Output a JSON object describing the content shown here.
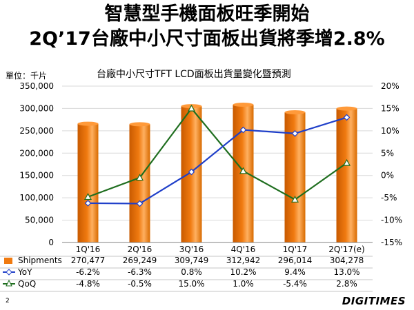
{
  "header": {
    "title_line1": "智慧型手機面板旺季開始",
    "title_line2": "2Q’17台廠中小尺寸面板出貨將季增2.8%"
  },
  "footer": {
    "page_number": "2",
    "logo_text": "DIGITIMES"
  },
  "colors": {
    "bar": "#f07a10",
    "yoy": "#1f3fc9",
    "qoq": "#1f6e1f",
    "grid": "#d9d9d9"
  },
  "chart_data": {
    "type": "bar",
    "title": "台廠中小尺寸TFT LCD面板出貨量變化暨預測",
    "unit_label": "單位：千片",
    "categories": [
      "1Q'16",
      "2Q'16",
      "3Q'16",
      "4Q'16",
      "1Q'17",
      "2Q'17(e)"
    ],
    "series": [
      {
        "name": "Shipments",
        "type": "bar",
        "axis": "left",
        "values": [
          270477,
          269249,
          309749,
          312942,
          296014,
          304278
        ],
        "labels": [
          "270,477",
          "269,249",
          "309,749",
          "312,942",
          "296,014",
          "304,278"
        ]
      },
      {
        "name": "YoY",
        "type": "line",
        "axis": "right",
        "values": [
          -6.2,
          -6.3,
          0.8,
          10.2,
          9.4,
          13.0
        ],
        "labels": [
          "-6.2%",
          "-6.3%",
          "0.8%",
          "10.2%",
          "9.4%",
          "13.0%"
        ]
      },
      {
        "name": "QoQ",
        "type": "line",
        "axis": "right",
        "values": [
          -4.8,
          -0.5,
          15.0,
          1.0,
          -5.4,
          2.8
        ],
        "labels": [
          "-4.8%",
          "-0.5%",
          "15.0%",
          "1.0%",
          "-5.4%",
          "2.8%"
        ]
      }
    ],
    "left_axis": {
      "min": 0,
      "max": 350000,
      "step": 50000,
      "ticks": [
        "0",
        "50,000",
        "100,000",
        "150,000",
        "200,000",
        "250,000",
        "300,000",
        "350,000"
      ]
    },
    "right_axis": {
      "min": -15,
      "max": 20,
      "step": 5,
      "ticks": [
        "-15%",
        "-10%",
        "-5%",
        "0%",
        "5%",
        "10%",
        "15%",
        "20%"
      ]
    },
    "grid": true,
    "legend": "data-table"
  }
}
